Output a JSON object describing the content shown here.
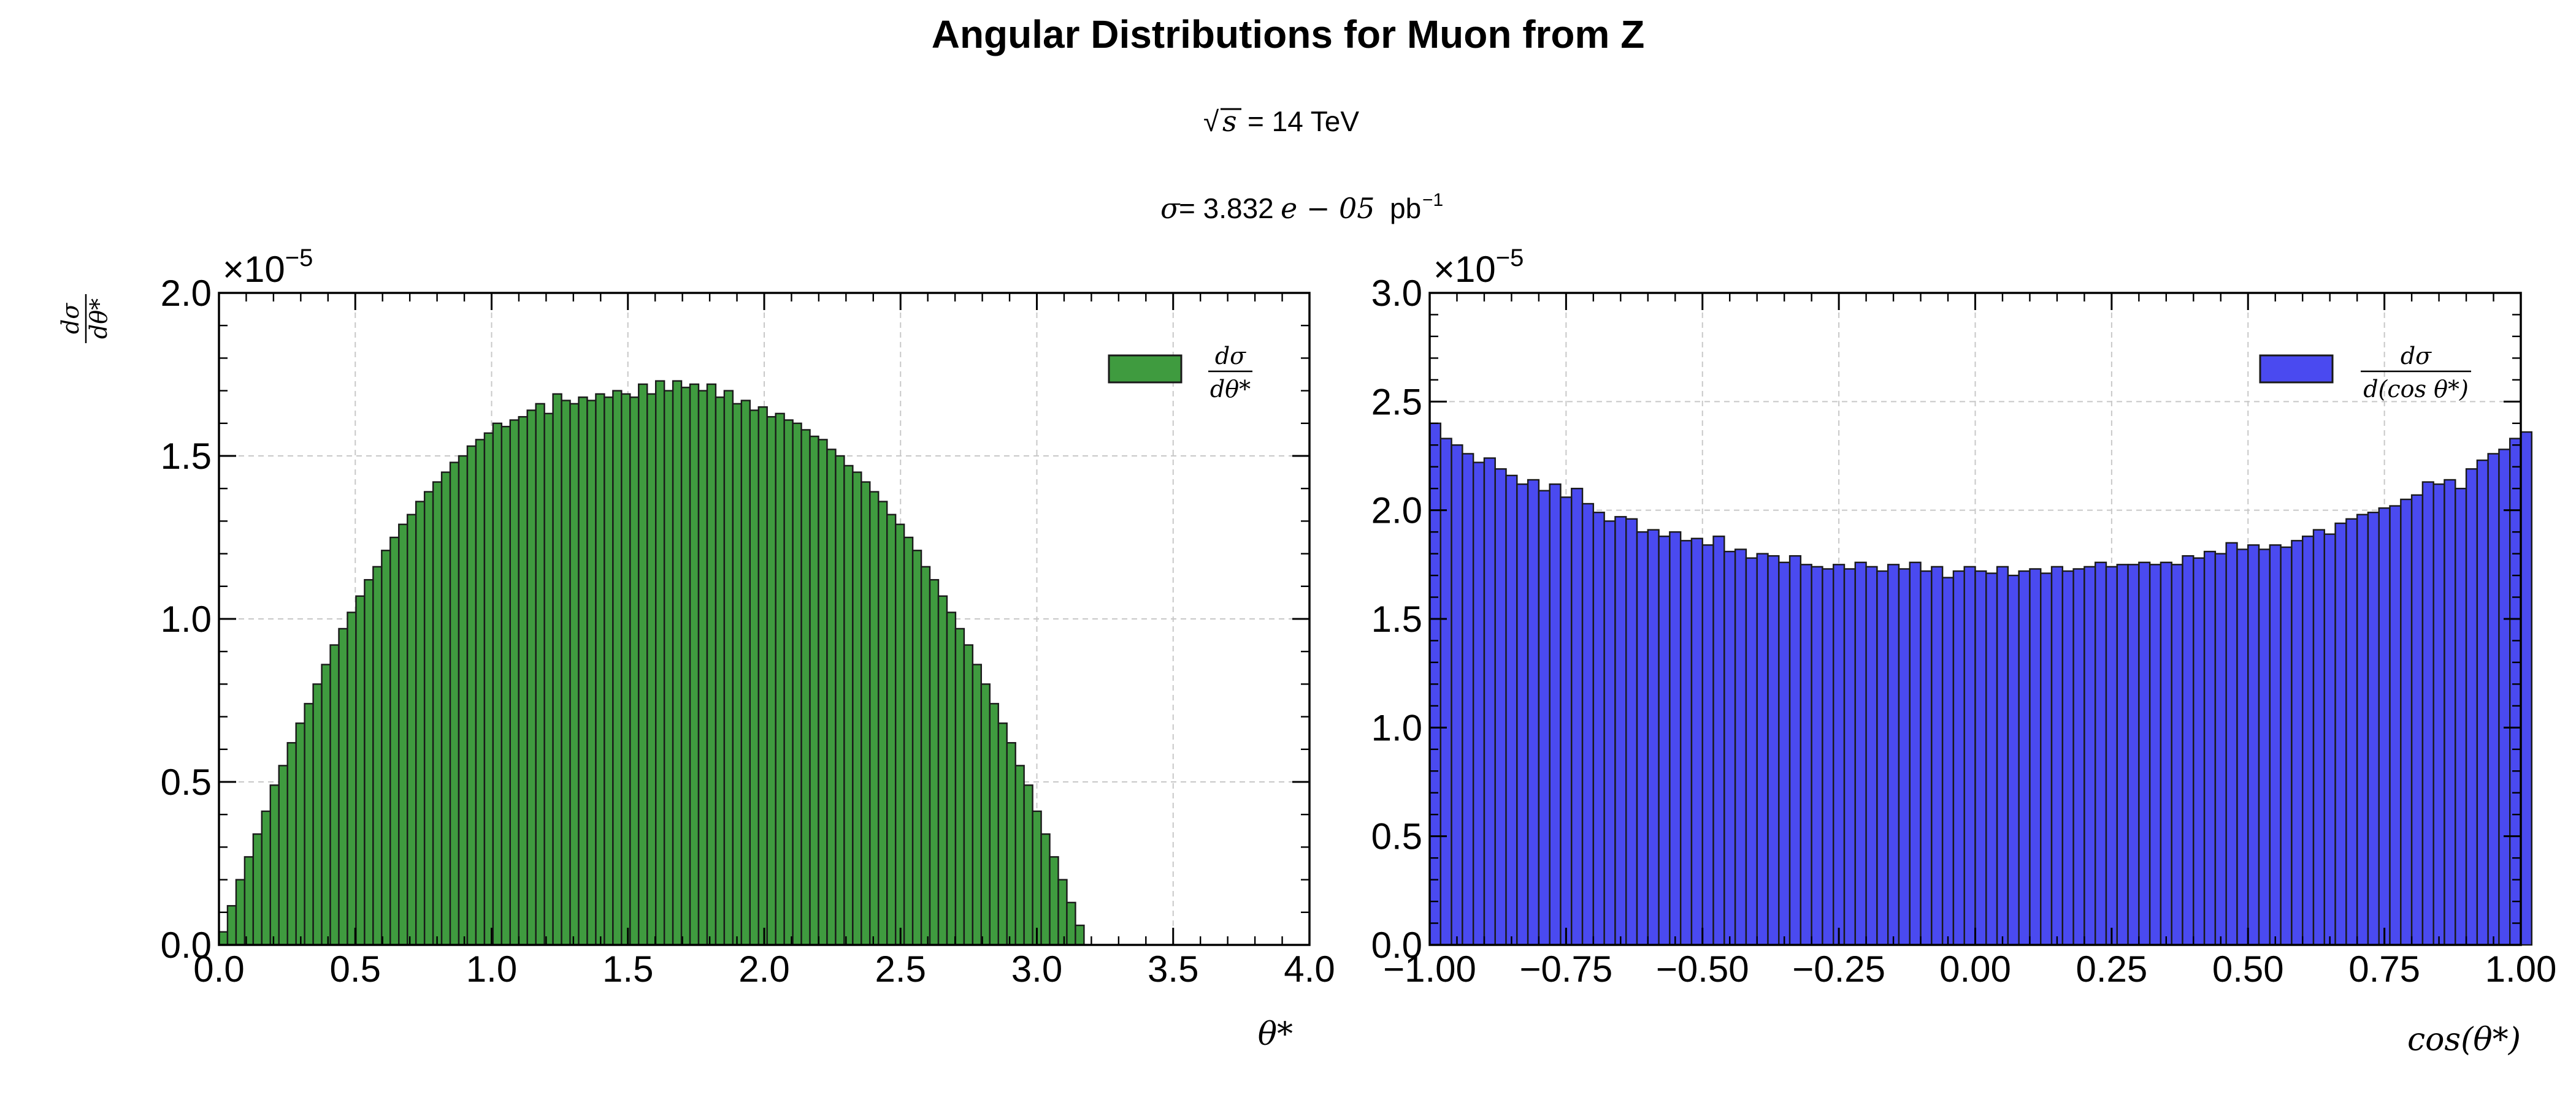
{
  "figure": {
    "title": "Angular Distributions for Muon from Z",
    "sqrt_s_label": "s",
    "energy_text": "= 14 TeV",
    "sigma_symbol": "σ",
    "xsec_text": "= 3.832",
    "xsec_exp_text": "e − 05",
    "xsec_unit": "pb",
    "xsec_unit_exp": "−1"
  },
  "chart_data": [
    {
      "type": "bar",
      "histogram": true,
      "color": "#3f9b3f",
      "edge_color": "#1a1a1a",
      "legend_numerator": "dσ",
      "legend_denominator": "dθ*",
      "legend_position": "top-right",
      "ylabel_numerator": "dσ",
      "ylabel_denominator": "dθ*",
      "xlabel": "θ*",
      "y_multiplier": "×10",
      "y_multiplier_exp": "−5",
      "grid": true,
      "xlim": [
        0,
        4
      ],
      "ylim": [
        0,
        2.0
      ],
      "x_ticks": [
        "0.0",
        "0.5",
        "1.0",
        "1.5",
        "2.0",
        "2.5",
        "3.0",
        "3.5",
        "4.0"
      ],
      "y_ticks": [
        "0.0",
        "0.5",
        "1.0",
        "1.5",
        "2.0"
      ],
      "bin_start": 0,
      "bin_width": 0.0314159,
      "values": [
        0.04,
        0.12,
        0.2,
        0.27,
        0.34,
        0.41,
        0.49,
        0.55,
        0.62,
        0.68,
        0.74,
        0.8,
        0.86,
        0.92,
        0.97,
        1.02,
        1.07,
        1.12,
        1.16,
        1.21,
        1.25,
        1.29,
        1.32,
        1.36,
        1.39,
        1.42,
        1.45,
        1.48,
        1.5,
        1.53,
        1.55,
        1.57,
        1.6,
        1.59,
        1.61,
        1.62,
        1.64,
        1.66,
        1.63,
        1.69,
        1.67,
        1.66,
        1.68,
        1.67,
        1.69,
        1.68,
        1.7,
        1.69,
        1.68,
        1.72,
        1.69,
        1.73,
        1.7,
        1.73,
        1.71,
        1.72,
        1.7,
        1.72,
        1.68,
        1.7,
        1.66,
        1.67,
        1.64,
        1.65,
        1.62,
        1.63,
        1.61,
        1.6,
        1.58,
        1.56,
        1.55,
        1.52,
        1.5,
        1.47,
        1.45,
        1.42,
        1.39,
        1.36,
        1.32,
        1.29,
        1.25,
        1.21,
        1.16,
        1.12,
        1.07,
        1.02,
        0.97,
        0.92,
        0.86,
        0.8,
        0.74,
        0.68,
        0.62,
        0.55,
        0.49,
        0.41,
        0.34,
        0.27,
        0.2,
        0.13,
        0.06
      ]
    },
    {
      "type": "bar",
      "histogram": true,
      "color": "#4a4af0",
      "edge_color": "#1a1a1a",
      "legend_numerator": "dσ",
      "legend_denominator": "d(cos θ*)",
      "legend_position": "top-right",
      "xlabel": "cos(θ*)",
      "y_multiplier": "×10",
      "y_multiplier_exp": "−5",
      "grid": true,
      "xlim": [
        -1,
        1
      ],
      "ylim": [
        0,
        3.0
      ],
      "x_ticks": [
        "−1.00",
        "−0.75",
        "−0.50",
        "−0.25",
        "0.00",
        "0.25",
        "0.50",
        "0.75",
        "1.00"
      ],
      "y_ticks": [
        "0.0",
        "0.5",
        "1.0",
        "1.5",
        "2.0",
        "2.5",
        "3.0"
      ],
      "bin_start": -1,
      "bin_width": 0.02,
      "values": [
        2.4,
        2.33,
        2.3,
        2.26,
        2.22,
        2.24,
        2.19,
        2.16,
        2.12,
        2.14,
        2.09,
        2.12,
        2.06,
        2.1,
        2.03,
        1.99,
        1.95,
        1.97,
        1.96,
        1.9,
        1.91,
        1.88,
        1.9,
        1.86,
        1.87,
        1.84,
        1.88,
        1.81,
        1.82,
        1.78,
        1.8,
        1.79,
        1.76,
        1.79,
        1.75,
        1.74,
        1.73,
        1.75,
        1.73,
        1.76,
        1.74,
        1.72,
        1.75,
        1.73,
        1.76,
        1.72,
        1.74,
        1.69,
        1.72,
        1.74,
        1.72,
        1.71,
        1.74,
        1.7,
        1.72,
        1.73,
        1.71,
        1.74,
        1.72,
        1.73,
        1.74,
        1.76,
        1.74,
        1.75,
        1.75,
        1.76,
        1.75,
        1.76,
        1.75,
        1.79,
        1.78,
        1.81,
        1.8,
        1.85,
        1.82,
        1.84,
        1.82,
        1.84,
        1.83,
        1.86,
        1.88,
        1.91,
        1.89,
        1.94,
        1.96,
        1.98,
        1.99,
        2.01,
        2.02,
        2.05,
        2.07,
        2.13,
        2.12,
        2.14,
        2.1,
        2.19,
        2.23,
        2.26,
        2.28,
        2.33,
        2.36
      ]
    }
  ]
}
